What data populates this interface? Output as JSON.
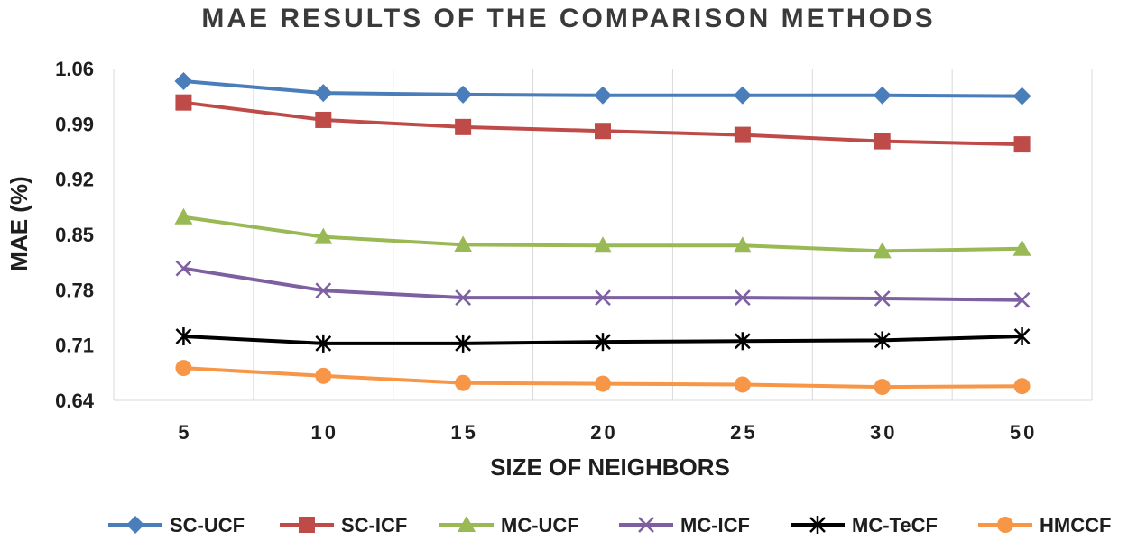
{
  "chart_data": {
    "type": "line",
    "title": "MAE RESULTS OF THE COMPARISON METHODS",
    "xlabel": "SIZE OF NEIGHBORS",
    "ylabel": "MAE (%)",
    "categories": [
      "5",
      "10",
      "15",
      "20",
      "25",
      "30",
      "50"
    ],
    "ylim": [
      0.64,
      1.06
    ],
    "yticks": [
      "1.06",
      "0.99",
      "0.92",
      "0.85",
      "0.78",
      "0.71",
      "0.64"
    ],
    "legend_position": "bottom",
    "series": [
      {
        "name": "SC-UCF",
        "color": "#4a7ebb",
        "marker": "diamond",
        "values": [
          1.044,
          1.029,
          1.027,
          1.026,
          1.026,
          1.026,
          1.025
        ]
      },
      {
        "name": "SC-ICF",
        "color": "#be4b48",
        "marker": "square",
        "values": [
          1.017,
          0.995,
          0.986,
          0.981,
          0.976,
          0.968,
          0.964
        ]
      },
      {
        "name": "MC-UCF",
        "color": "#98b954",
        "marker": "triangle",
        "values": [
          0.872,
          0.847,
          0.837,
          0.836,
          0.836,
          0.829,
          0.832
        ]
      },
      {
        "name": "MC-ICF",
        "color": "#7d60a0",
        "marker": "x",
        "values": [
          0.807,
          0.779,
          0.77,
          0.77,
          0.77,
          0.769,
          0.767
        ]
      },
      {
        "name": "MC-TeCF",
        "color": "#000000",
        "marker": "star",
        "values": [
          0.721,
          0.712,
          0.712,
          0.714,
          0.715,
          0.716,
          0.721
        ]
      },
      {
        "name": "HMCCF",
        "color": "#f79646",
        "marker": "circle",
        "values": [
          0.681,
          0.671,
          0.662,
          0.661,
          0.66,
          0.657,
          0.658
        ]
      }
    ]
  }
}
